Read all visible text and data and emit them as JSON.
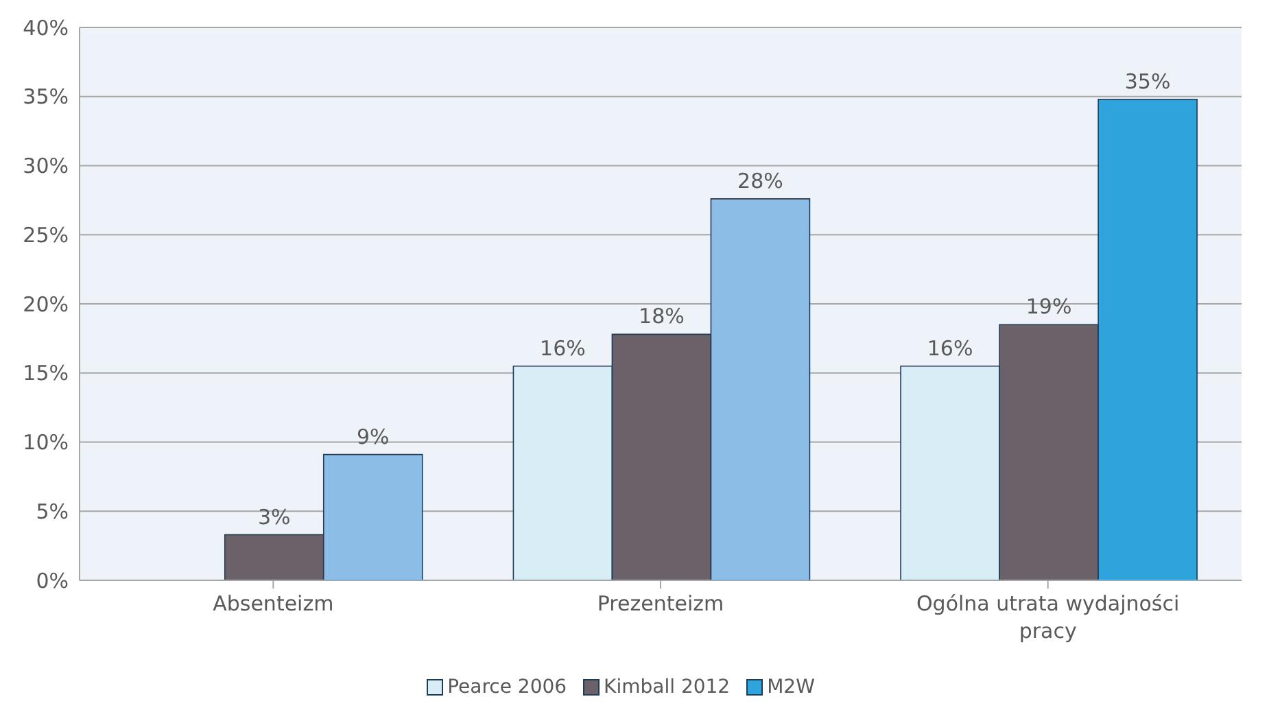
{
  "chart_data": {
    "type": "bar",
    "categories": [
      "Absenteizm",
      "Prezenteizm",
      "Ogólna utrata wydajności pracy"
    ],
    "series": [
      {
        "name": "Pearce 2006",
        "color": "#d9edf7",
        "values": [
          null,
          15.5,
          15.5
        ],
        "value_labels": [
          null,
          "16%",
          "16%"
        ]
      },
      {
        "name": "Kimball 2012",
        "color": "#6b6169",
        "values": [
          3.3,
          17.8,
          18.5
        ],
        "value_labels": [
          "3%",
          "18%",
          "19%"
        ]
      },
      {
        "name": "M2W",
        "color": "#2fa3dc",
        "colors": [
          "#8bbde6",
          "#8bbde6",
          "#2fa3dc"
        ],
        "values": [
          9.1,
          27.6,
          34.8
        ],
        "value_labels": [
          "9%",
          "28%",
          "35%"
        ]
      }
    ],
    "ylim": [
      0,
      40
    ],
    "yticks": [
      {
        "value": 0,
        "label": "0%"
      },
      {
        "value": 5,
        "label": "5%"
      },
      {
        "value": 10,
        "label": "10%"
      },
      {
        "value": 15,
        "label": "15%"
      },
      {
        "value": 20,
        "label": "20%"
      },
      {
        "value": 25,
        "label": "25%"
      },
      {
        "value": 30,
        "label": "30%"
      },
      {
        "value": 35,
        "label": "35%"
      },
      {
        "value": 40,
        "label": "40%"
      }
    ],
    "grid": "y",
    "legend": "bottom"
  }
}
